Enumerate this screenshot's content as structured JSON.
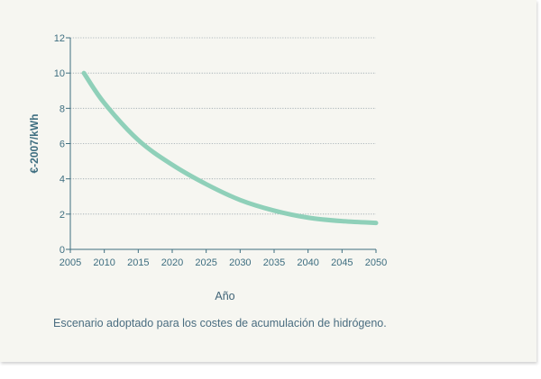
{
  "chart_data": {
    "type": "line",
    "title": "",
    "xlabel": "Año",
    "ylabel": "€-2007/kWh",
    "xlim": [
      2005,
      2050
    ],
    "ylim": [
      0,
      12
    ],
    "x_ticks": [
      "2005",
      "2010",
      "2015",
      "2020",
      "2025",
      "2030",
      "2035",
      "2040",
      "2045",
      "2050"
    ],
    "y_ticks": [
      "0",
      "2",
      "4",
      "6",
      "8",
      "10",
      "12"
    ],
    "grid": "horizontal dotted",
    "series": [
      {
        "color": "#8fd0b9",
        "x": [
          2007,
          2010,
          2015,
          2020,
          2025,
          2030,
          2035,
          2040,
          2045,
          2050
        ],
        "y": [
          10.0,
          8.3,
          6.2,
          4.8,
          3.7,
          2.8,
          2.2,
          1.8,
          1.6,
          1.5
        ]
      }
    ],
    "axis_color": "#3e6e80",
    "grid_color": "#9aa7ad"
  },
  "caption": "Escenario adoptado para los costes de acumulación de hidrógeno."
}
